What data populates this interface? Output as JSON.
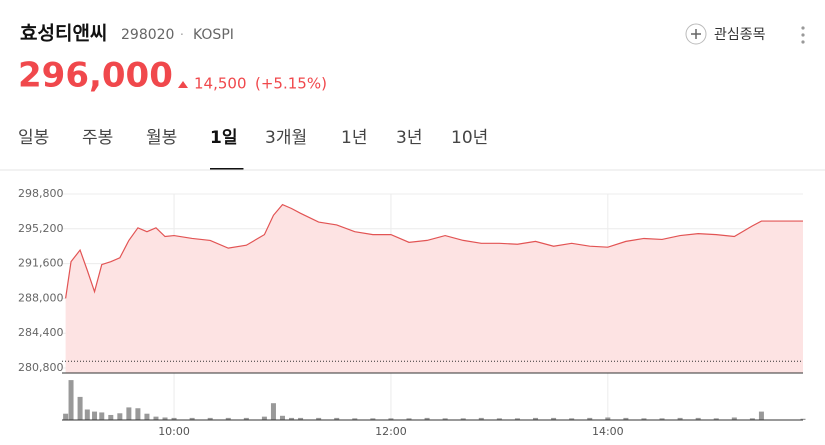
{
  "header": {
    "name": "효성티앤씨",
    "code": "298020",
    "separator": "·",
    "market": "KOSPI",
    "watch_button": "관심종목",
    "price": "296,000",
    "change": "14,500",
    "change_rate": "(+5.15%)"
  },
  "tabs": {
    "items": [
      "일봉",
      "주봉",
      "월봉",
      "1일",
      "3개월",
      "1년",
      "3년",
      "10년"
    ],
    "selected": 3
  },
  "chart_data": {
    "type": "line",
    "color": "#e25454",
    "fill": "#fde3e3",
    "x": [
      0,
      3,
      8,
      12,
      16,
      20,
      25,
      30,
      35,
      40,
      45,
      50,
      55,
      60,
      70,
      80,
      90,
      100,
      110,
      115,
      120,
      125,
      130,
      140,
      150,
      160,
      170,
      180,
      190,
      200,
      210,
      220,
      230,
      240,
      250,
      260,
      270,
      280,
      290,
      300,
      310,
      320,
      330,
      340,
      350,
      360,
      370,
      380,
      385,
      408
    ],
    "series": [
      {
        "values": [
          288000,
          291800,
          293000,
          290900,
          288700,
          291500,
          291800,
          292200,
          294000,
          295300,
          294900,
          295300,
          294400,
          294500,
          294200,
          294000,
          293200,
          293500,
          294600,
          296600,
          297700,
          297300,
          296800,
          295900,
          295600,
          294900,
          294600,
          294600,
          293800,
          294000,
          294500,
          294000,
          293700,
          293700,
          293600,
          293900,
          293400,
          293700,
          293400,
          293300,
          293900,
          294200,
          294100,
          294500,
          294700,
          294600,
          294400,
          295500,
          296000,
          296000
        ]
      }
    ],
    "reference_line": 281500,
    "ylim": [
      280800,
      298800
    ],
    "yticks": [
      {
        "value": 280800,
        "label": "280,800"
      },
      {
        "value": 284400,
        "label": "284,400"
      },
      {
        "value": 288000,
        "label": "288,000"
      },
      {
        "value": 291600,
        "label": "291,600"
      },
      {
        "value": 295200,
        "label": "295,200"
      },
      {
        "value": 298800,
        "label": "298,800"
      }
    ],
    "xlim": [
      -2,
      408
    ],
    "xticks": [
      {
        "value": 60,
        "label": "10:00"
      },
      {
        "value": 180,
        "label": "12:00"
      },
      {
        "value": 300,
        "label": "14:00"
      }
    ],
    "volume": {
      "color": "#999999",
      "values": [
        15,
        95,
        55,
        25,
        20,
        18,
        12,
        16,
        30,
        28,
        15,
        8,
        6,
        5,
        5,
        5,
        5,
        5,
        8,
        40,
        10,
        5,
        5,
        5,
        5,
        4,
        4,
        4,
        4,
        5,
        4,
        4,
        5,
        4,
        4,
        5,
        5,
        4,
        5,
        6,
        5,
        4,
        4,
        5,
        5,
        4,
        6,
        4,
        20,
        3
      ],
      "ylim": [
        0,
        100
      ]
    },
    "grid": true
  }
}
